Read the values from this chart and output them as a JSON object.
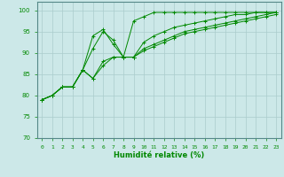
{
  "xlabel": "Humidité relative (%)",
  "bg_color": "#cce8e8",
  "grid_color": "#aacccc",
  "line_color": "#008800",
  "xlim": [
    -0.5,
    23.5
  ],
  "ylim": [
    70,
    102
  ],
  "yticks": [
    70,
    75,
    80,
    85,
    90,
    95,
    100
  ],
  "xticks": [
    0,
    1,
    2,
    3,
    4,
    5,
    6,
    7,
    8,
    9,
    10,
    11,
    12,
    13,
    14,
    15,
    16,
    17,
    18,
    19,
    20,
    21,
    22,
    23
  ],
  "series": [
    [
      79,
      80,
      82,
      82,
      86,
      94,
      95.5,
      92,
      89,
      97.5,
      98.5,
      99.5,
      99.5,
      99.5,
      99.5,
      99.5,
      99.5,
      99.5,
      99.5,
      99.5,
      99.5,
      99.5,
      99.5,
      99.5
    ],
    [
      79,
      80,
      82,
      82,
      86,
      91,
      95,
      93,
      89,
      89,
      92.5,
      94,
      95,
      96,
      96.5,
      97,
      97.5,
      98,
      98.5,
      99,
      99,
      99.5,
      99.5,
      99.5
    ],
    [
      79,
      80,
      82,
      82,
      86,
      84,
      88,
      89,
      89,
      89,
      91,
      92,
      93,
      94,
      95,
      95.5,
      96,
      96.5,
      97,
      97.5,
      98,
      98.5,
      99,
      99.5
    ],
    [
      79,
      80,
      82,
      82,
      86,
      84,
      87,
      89,
      89,
      89,
      90.5,
      91.5,
      92.5,
      93.5,
      94.5,
      95,
      95.5,
      96,
      96.5,
      97,
      97.5,
      98,
      98.5,
      99
    ]
  ]
}
